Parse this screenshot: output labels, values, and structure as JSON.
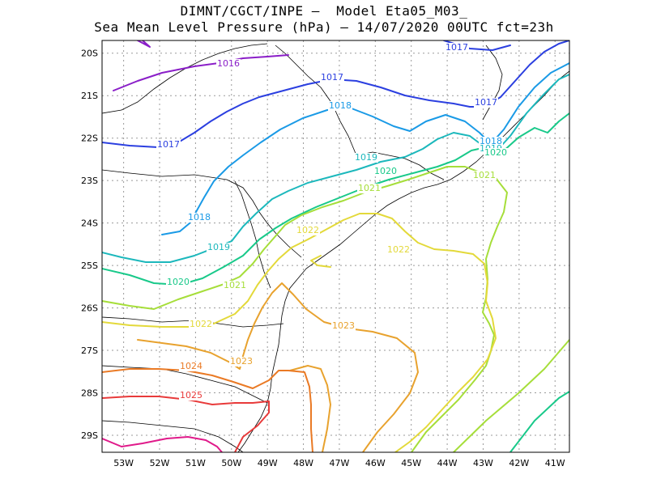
{
  "title": {
    "line1": "DIMNT/CGCT/INPE –  Model Eta05_M03_",
    "line2": "Sea Mean Level Pressure (hPa) – 14/07/2020 00UTC fct=23h"
  },
  "axes": {
    "lon_labels": [
      "53W",
      "52W",
      "51W",
      "50W",
      "49W",
      "48W",
      "47W",
      "46W",
      "45W",
      "44W",
      "43W",
      "42W",
      "41W"
    ],
    "lat_labels": [
      "20S",
      "21S",
      "22S",
      "23S",
      "24S",
      "25S",
      "26S",
      "27S",
      "28S",
      "29S"
    ]
  },
  "chart_data": {
    "type": "contour-map",
    "variable": "Sea Mean Level Pressure (hPa)",
    "lon_range": [
      -53.6,
      -40.6
    ],
    "lat_range": [
      -29.4,
      -19.7
    ],
    "grid": true,
    "contours": [
      {
        "value": 1016,
        "label": "1016",
        "color": "#8a1ec8"
      },
      {
        "value": 1017,
        "label": "1017",
        "color": "#2b3fe0"
      },
      {
        "value": 1018,
        "label": "1018",
        "color": "#1a9ae6"
      },
      {
        "value": 1019,
        "label": "1019",
        "color": "#1cb8bc"
      },
      {
        "value": 1020,
        "label": "1020",
        "color": "#19c98a"
      },
      {
        "value": 1021,
        "label": "1021",
        "color": "#a6de3a"
      },
      {
        "value": 1022,
        "label": "1022",
        "color": "#e3d93a"
      },
      {
        "value": 1023,
        "label": "1023",
        "color": "#e8a22e"
      },
      {
        "value": 1024,
        "label": "1024",
        "color": "#ea7a25"
      },
      {
        "value": 1025,
        "label": "1025",
        "color": "#e83a3a"
      },
      {
        "value": 1026,
        "label": "",
        "color": "#e01a8a"
      }
    ]
  }
}
